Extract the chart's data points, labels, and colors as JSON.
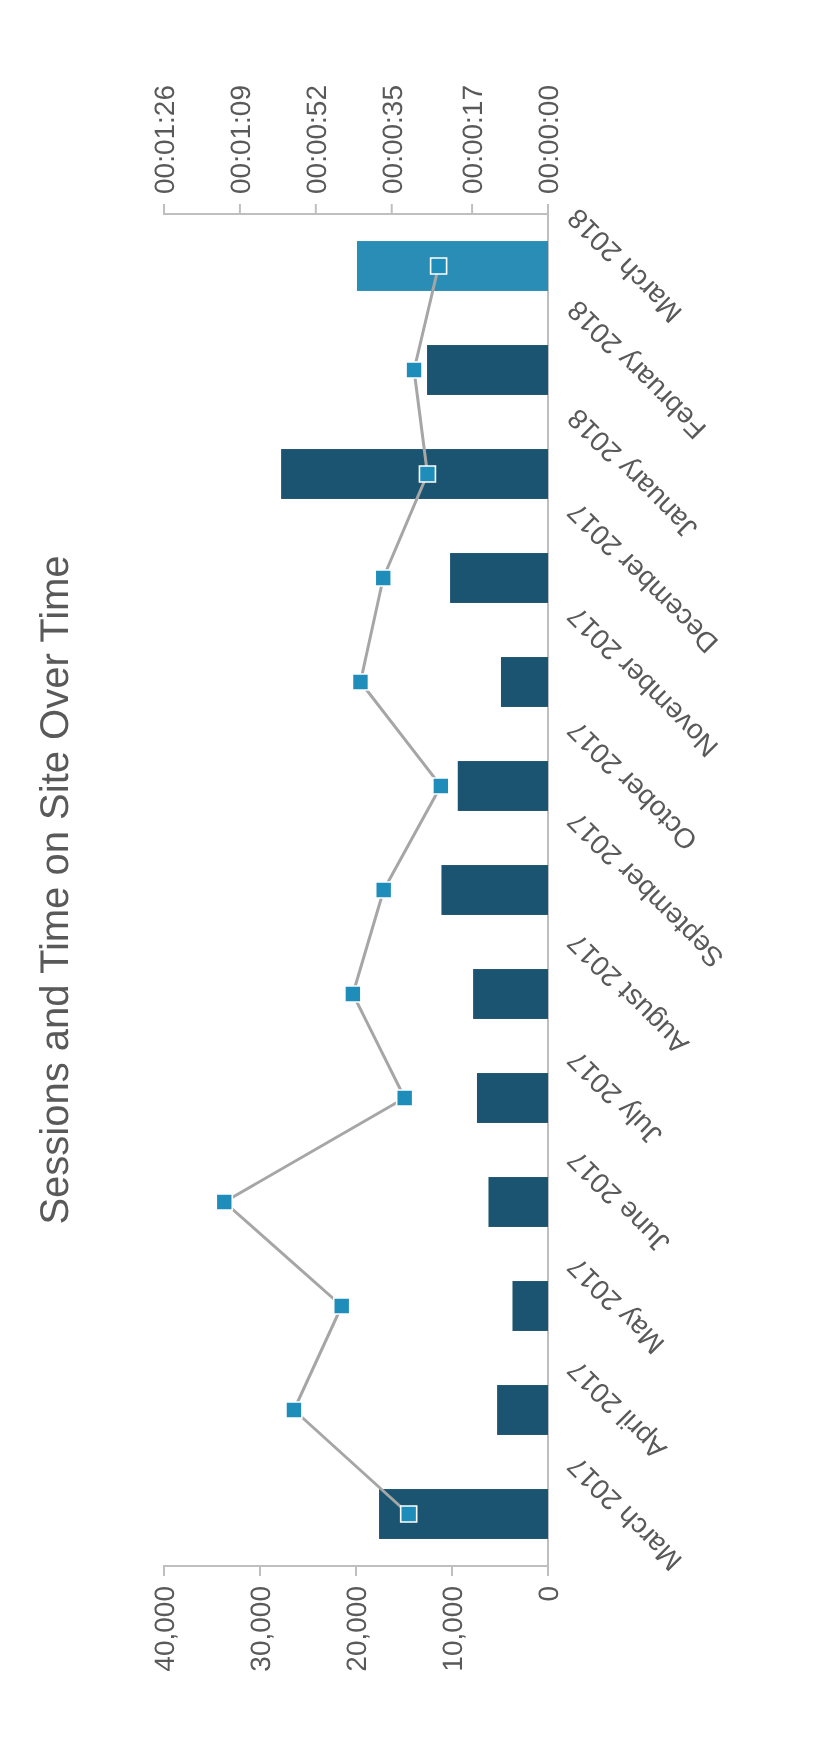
{
  "chart_data": {
    "type": "bar",
    "orientation": "horizontal",
    "title": "Sessions and Time on Site Over Time",
    "categories": [
      "March 2018",
      "February 2018",
      "January 2018",
      "December 2017",
      "November 2017",
      "October 2017",
      "September 2017",
      "August 2017",
      "July 2017",
      "June 2017",
      "May 2017",
      "April 2017",
      "March 2017"
    ],
    "series": [
      {
        "colors": [
          "#2a8db5",
          "#1b5470",
          "#1b5470",
          "#1b5470",
          "#1b5470",
          "#1b5470",
          "#1b5470",
          "#1b5470",
          "#1b5470",
          "#1b5470",
          "#1b5470",
          "#1b5470",
          "#1b5470"
        ],
        "values": [
          19900,
          12600,
          27800,
          10200,
          4900,
          9400,
          11100,
          7800,
          7400,
          6200,
          3700,
          5300,
          17600
        ]
      },
      {
        "type": "line",
        "axis": "x2",
        "color": "#1f8dba",
        "marker": "square",
        "values": [
          24.5,
          30.0,
          27.0,
          36.9,
          42.0,
          24.0,
          36.8,
          43.7,
          32.1,
          72.5,
          46.2,
          56.9,
          31.2
        ]
      }
    ],
    "xlim": [
      40000,
      0
    ],
    "xticks": [
      {
        "value": 0,
        "label": "0"
      },
      {
        "value": 10000,
        "label": "10,000"
      },
      {
        "value": 20000,
        "label": "20,000"
      },
      {
        "value": 30000,
        "label": "30,000"
      },
      {
        "value": 40000,
        "label": "40,000"
      }
    ],
    "x2lim": [
      86,
      0
    ],
    "x2ticks": [
      {
        "value": 0,
        "label": "00:00:00"
      },
      {
        "value": 17,
        "label": "00:00:17"
      },
      {
        "value": 35,
        "label": "00:00:35"
      },
      {
        "value": 52,
        "label": "00:00:52"
      },
      {
        "value": 69,
        "label": "00:01:09"
      },
      {
        "value": 86,
        "label": "00:01:26"
      }
    ],
    "grid": false
  }
}
